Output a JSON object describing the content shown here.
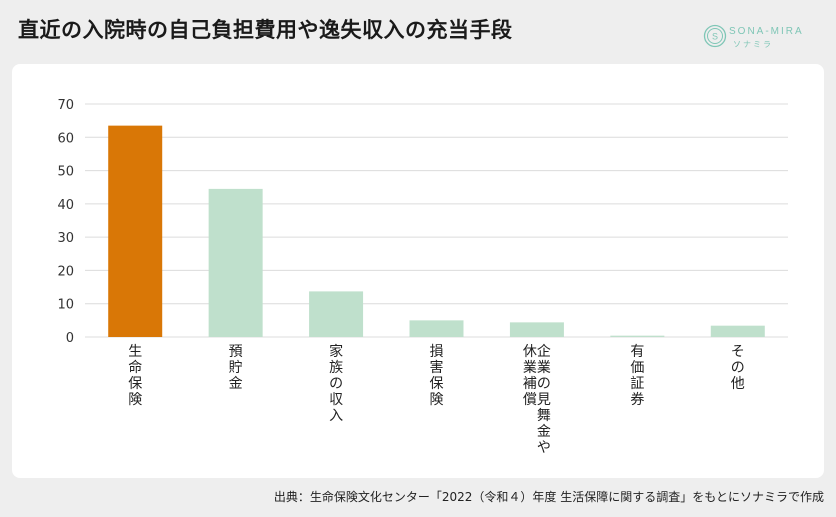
{
  "header": {
    "title": "直近の入院時の自己負担費用や逸失収入の充当手段"
  },
  "logo": {
    "name": "SONA-MIRA",
    "sub": "ソナミラ",
    "letter": "S"
  },
  "chart_data": {
    "type": "bar",
    "categories": [
      "生命保険",
      "預貯金",
      "家族の収入",
      "損害保険",
      "企業の見舞金や休業補償",
      "有価証券",
      "その他"
    ],
    "category_lines": [
      [
        "生命保険"
      ],
      [
        "預貯金"
      ],
      [
        "家族の収入"
      ],
      [
        "損害保険"
      ],
      [
        "企業の見舞金や",
        "休業補償"
      ],
      [
        "有価証券"
      ],
      [
        "その他"
      ]
    ],
    "values": [
      63.5,
      44.5,
      13.7,
      5.0,
      4.4,
      0.4,
      3.4
    ],
    "ylim": [
      0,
      70
    ],
    "yticks": [
      0,
      10,
      20,
      30,
      40,
      50,
      60,
      70
    ],
    "highlight_index": 0,
    "colors": {
      "highlight": "#d97706",
      "bar": "#bfe0cc",
      "grid": "#dcdcdc"
    },
    "grid": true,
    "title": "",
    "xlabel": "",
    "ylabel": ""
  },
  "source": "出典：生命保険文化センター「2022（令和４）年度 生活保障に関する調査」をもとにソナミラで作成"
}
